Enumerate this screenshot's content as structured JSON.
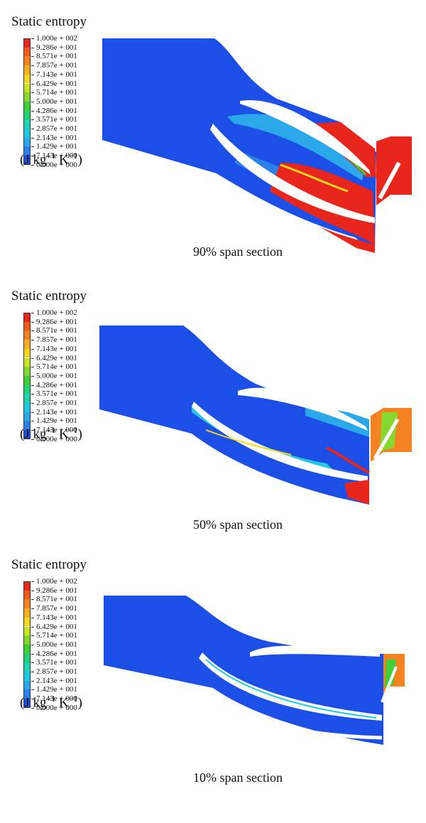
{
  "legend": {
    "title": "Static entropy",
    "units_prefix": "(J kg",
    "units_exp1": "−1",
    "units_mid": " K",
    "units_exp2": "−1",
    "units_suffix": ")",
    "labels": [
      "1.000e + 002",
      "9.286e + 001",
      "8.571e + 001",
      "7.857e + 001",
      "7.143e + 001",
      "6.429e + 001",
      "5.714e + 001",
      "5.000e + 001",
      "4.286e + 001",
      "3.571e + 001",
      "2.857e + 001",
      "2.143e + 001",
      "1.429e + 001",
      "7.143e + 000",
      "0.000e + 000"
    ],
    "colors": [
      "#e8261c",
      "#ef5a1e",
      "#f58220",
      "#f8ae22",
      "#f2d81e",
      "#c8e224",
      "#86d82e",
      "#3fcf38",
      "#22d275",
      "#20d4b2",
      "#22c9e0",
      "#2aa8ea",
      "#2c80ea",
      "#1c4fe8"
    ]
  },
  "sections": [
    {
      "caption": "90% span section"
    },
    {
      "caption": "50% span section"
    },
    {
      "caption": "10% span section"
    }
  ]
}
